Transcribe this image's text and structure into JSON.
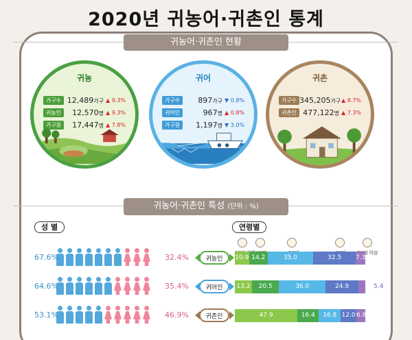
{
  "title": "2020년 귀농어·귀촌인 통계",
  "status_section": {
    "label": "귀농어·귀촌인 현황"
  },
  "circles": [
    {
      "name": "귀농",
      "color": "#4aa043",
      "rows": [
        {
          "label": "가구수",
          "value": "12,489",
          "unit": "가구",
          "change": "9.3%",
          "direction": "up"
        },
        {
          "label": "귀농인",
          "value": "12,570",
          "unit": "명",
          "change": "9.3%",
          "direction": "up"
        },
        {
          "label": "가구원",
          "value": "17,447",
          "unit": "명",
          "change": "7.8%",
          "direction": "up"
        }
      ]
    },
    {
      "name": "귀어",
      "color": "#5ab1e4",
      "rows": [
        {
          "label": "가구수",
          "value": "897",
          "unit": "가구",
          "change": "0.8%",
          "direction": "down"
        },
        {
          "label": "귀어인",
          "value": "967",
          "unit": "명",
          "change": "0.8%",
          "direction": "down"
        },
        {
          "label": "가구원",
          "value": "1,197",
          "unit": "명",
          "change": "3.0%",
          "direction": "down"
        }
      ]
    },
    {
      "name": "귀촌",
      "color": "#a8855e",
      "rows": [
        {
          "label": "가구수",
          "value": "345,205",
          "unit": "가구",
          "change": "8.7%",
          "direction": "up"
        },
        {
          "label": "귀촌인",
          "value": "477,122",
          "unit": "명",
          "change": "7.3%",
          "direction": "up"
        }
      ]
    }
  ],
  "characteristics": {
    "label": "귀농어·귀촌인 특성",
    "unit": "(단위 : %)",
    "sex_label": "성 별",
    "age_label": "연령별",
    "age_groups": [
      "30대 이하",
      "40대",
      "50대",
      "60대",
      "70대 이상"
    ],
    "rows": [
      {
        "badge": "귀농인",
        "male_pct": "67.6%",
        "female_pct": "32.4%",
        "male_ratio": 0.676,
        "age_values": [
          10.9,
          14.2,
          35.0,
          32.5,
          7.3
        ]
      },
      {
        "badge": "귀어인",
        "male_pct": "64.6%",
        "female_pct": "35.4%",
        "male_ratio": 0.646,
        "age_values": [
          13.2,
          20.5,
          36.0,
          24.9,
          5.4
        ]
      },
      {
        "badge": "귀촌인",
        "male_pct": "53.1%",
        "female_pct": "46.9%",
        "male_ratio": 0.531,
        "age_values": [
          47.9,
          16.4,
          16.8,
          12.0,
          6.8
        ]
      }
    ],
    "age_labels": [
      [
        "10.9",
        "14.2",
        "35.0",
        "32.5",
        "7.3"
      ],
      [
        "13.2",
        "20.5",
        "36.0",
        "24.9",
        "5.4"
      ],
      [
        "47.9",
        "16.4",
        "16.8",
        "12.0",
        "6.8"
      ]
    ]
  }
}
